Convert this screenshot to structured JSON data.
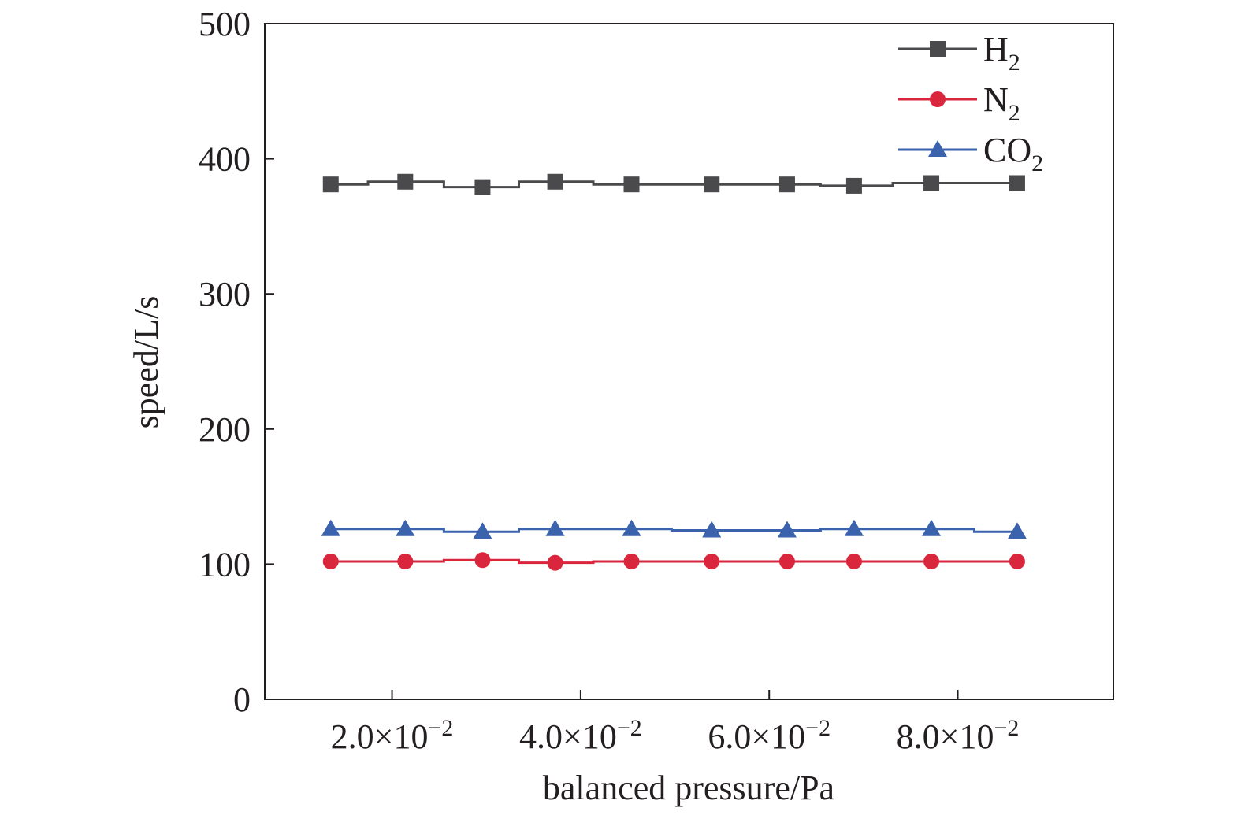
{
  "chart_data": {
    "type": "line",
    "title": "",
    "xlabel": "balanced pressure/Pa",
    "ylabel": "speed/L/s",
    "xlim": [
      0.0065,
      0.0965
    ],
    "ylim": [
      0,
      500
    ],
    "x_ticks": [
      0.02,
      0.04,
      0.06,
      0.08
    ],
    "x_tick_labels": [
      {
        "mantissa": "2.0×10",
        "exponent": "−2"
      },
      {
        "mantissa": "4.0×10",
        "exponent": "−2"
      },
      {
        "mantissa": "6.0×10",
        "exponent": "−2"
      },
      {
        "mantissa": "8.0×10",
        "exponent": "−2"
      }
    ],
    "y_ticks": [
      0,
      100,
      200,
      300,
      400,
      500
    ],
    "y_tick_labels": [
      "0",
      "100",
      "200",
      "300",
      "400",
      "500"
    ],
    "grid": false,
    "legend_position": "top-right",
    "series": [
      {
        "name": "H2",
        "label_main": "H",
        "label_sub": "2",
        "marker": "square",
        "color": "#4a4a4c",
        "x": [
          0.0135,
          0.0214,
          0.0296,
          0.0373,
          0.0454,
          0.0539,
          0.0619,
          0.069,
          0.0772,
          0.0863
        ],
        "y": [
          381,
          383,
          379,
          383,
          381,
          381,
          381,
          380,
          382,
          382
        ]
      },
      {
        "name": "N2",
        "label_main": "N",
        "label_sub": "2",
        "marker": "circle",
        "color": "#d9263c",
        "x": [
          0.0135,
          0.0214,
          0.0296,
          0.0373,
          0.0454,
          0.0539,
          0.0619,
          0.069,
          0.0772,
          0.0863
        ],
        "y": [
          102,
          102,
          103,
          101,
          102,
          102,
          102,
          102,
          102,
          102
        ]
      },
      {
        "name": "CO2",
        "label_main": "CO",
        "label_sub": "2",
        "marker": "triangle",
        "color": "#3a62ad",
        "x": [
          0.0135,
          0.0214,
          0.0296,
          0.0373,
          0.0454,
          0.0539,
          0.0619,
          0.069,
          0.0772,
          0.0863
        ],
        "y": [
          126,
          126,
          124,
          126,
          126,
          125,
          125,
          126,
          126,
          124
        ]
      }
    ]
  }
}
